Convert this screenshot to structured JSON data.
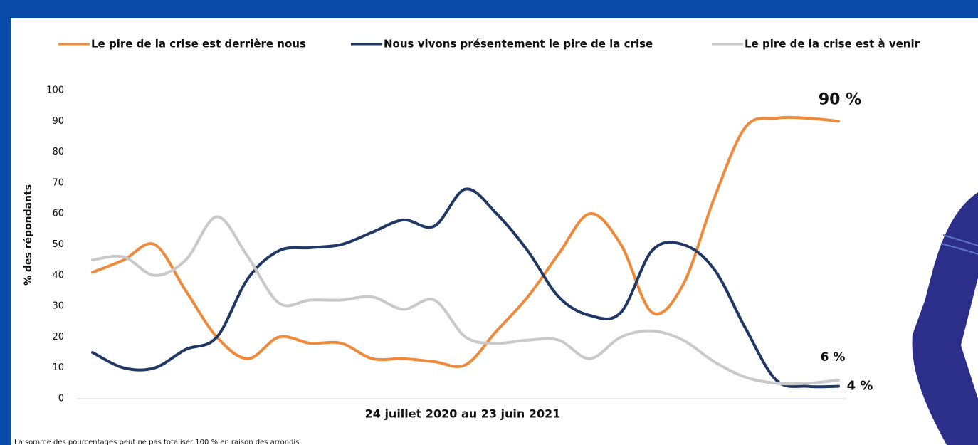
{
  "chart_data": {
    "type": "line",
    "x_label": "24 juillet 2020 au 23 juin 2021",
    "y_label": "% des répondants",
    "note": "La somme des pourcentages peut ne pas totaliser 100 % en raison des arrondis.",
    "categories": [
      null,
      null,
      null,
      null,
      null,
      null,
      null,
      null,
      null,
      null,
      null,
      null,
      null,
      null,
      null,
      null,
      null,
      null,
      null,
      null,
      null,
      null,
      null,
      null,
      null
    ],
    "ylim": [
      0,
      100
    ],
    "yticks": [
      0,
      10,
      20,
      30,
      40,
      50,
      60,
      70,
      80,
      90,
      100
    ],
    "grid": false,
    "legend": "top",
    "series": [
      {
        "name": "Le pire de la crise est derrière nous",
        "color": "#ef8a3c",
        "values": [
          41,
          45,
          50,
          35,
          20,
          13,
          20,
          18,
          18,
          13,
          13,
          12,
          11,
          22,
          33,
          47,
          60,
          50,
          28,
          37,
          65,
          88,
          91,
          91,
          90
        ],
        "value_labels": [
          null,
          null,
          null,
          null,
          null,
          null,
          null,
          null,
          null,
          null,
          null,
          null,
          null,
          null,
          null,
          null,
          null,
          null,
          null,
          null,
          null,
          null,
          null,
          null,
          "90 %"
        ]
      },
      {
        "name": "Nous vivons présentement le pire de la crise",
        "color": "#1f3864",
        "values": [
          15,
          10,
          10,
          16,
          20,
          39,
          48,
          49,
          50,
          54,
          58,
          56,
          68,
          60,
          48,
          33,
          27,
          28,
          48,
          50,
          42,
          23,
          6,
          4,
          4
        ],
        "value_labels": [
          null,
          null,
          null,
          null,
          null,
          null,
          null,
          null,
          null,
          null,
          null,
          null,
          null,
          null,
          null,
          null,
          null,
          null,
          null,
          null,
          null,
          null,
          null,
          null,
          "4 %"
        ]
      },
      {
        "name": "Le pire de la crise est à venir",
        "color": "#c9c9c9",
        "values": [
          45,
          46,
          40,
          45,
          59,
          46,
          31,
          32,
          32,
          33,
          29,
          32,
          20,
          18,
          19,
          19,
          13,
          20,
          22,
          19,
          12,
          7,
          5,
          5,
          6
        ],
        "value_labels": [
          null,
          null,
          null,
          null,
          null,
          null,
          null,
          null,
          null,
          null,
          null,
          null,
          null,
          null,
          null,
          null,
          null,
          null,
          null,
          null,
          null,
          null,
          null,
          null,
          "6 %"
        ]
      }
    ]
  }
}
